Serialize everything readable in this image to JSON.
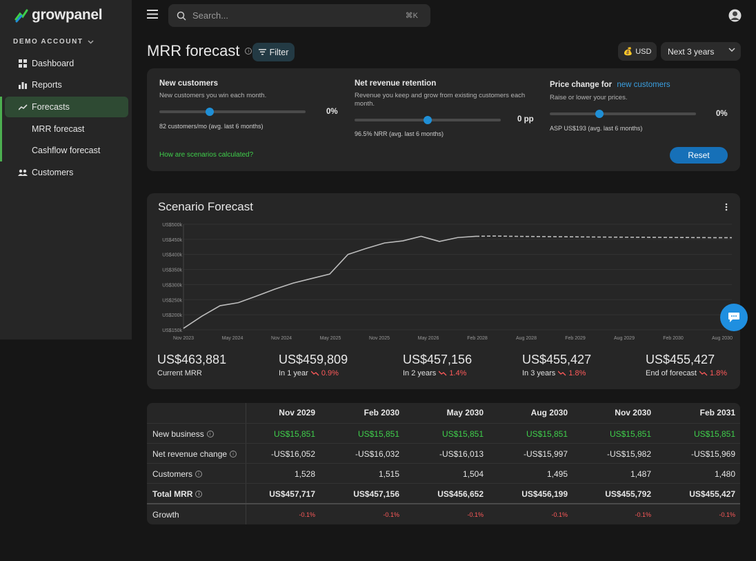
{
  "brand": {
    "name": "growpanel"
  },
  "account": {
    "label": "DEMO ACCOUNT"
  },
  "nav": {
    "dashboard": "Dashboard",
    "reports": "Reports",
    "forecasts": "Forecasts",
    "mrr_forecast": "MRR forecast",
    "cashflow_forecast": "Cashflow forecast",
    "customers": "Customers"
  },
  "search": {
    "placeholder": "Search...",
    "shortcut": "⌘K"
  },
  "page": {
    "title": "MRR forecast",
    "filter_label": "Filter",
    "currency": "USD",
    "range": "Next 3 years"
  },
  "scenario": {
    "new_customers": {
      "title": "New customers",
      "desc": "New customers you win each month.",
      "value": "0%",
      "foot": "82 customers/mo (avg. last 6 months)"
    },
    "nrr": {
      "title": "Net revenue retention",
      "desc": "Revenue you keep and grow from existing customers each month.",
      "value": "0 pp",
      "foot": "96.5% NRR (avg. last 6 months)"
    },
    "price": {
      "title": "Price change for",
      "link": "new customers",
      "desc": "Raise or lower your prices.",
      "value": "0%",
      "foot": "ASP US$193 (avg. last 6 months)"
    },
    "how_link": "How are scenarios calculated?",
    "reset": "Reset"
  },
  "chart_data": {
    "type": "line",
    "title": "Scenario Forecast",
    "ylim": [
      150000,
      500000
    ],
    "yticks": [
      "US$150k",
      "US$200k",
      "US$250k",
      "US$300k",
      "US$350k",
      "US$400k",
      "US$450k",
      "US$500k"
    ],
    "xticks": [
      "Nov 2023",
      "May 2024",
      "Nov 2024",
      "May 2025",
      "Nov 2025",
      "May 2026",
      "Feb 2028",
      "Aug 2028",
      "Feb 2029",
      "Aug 2029",
      "Feb 2030",
      "Aug 2030"
    ],
    "series": [
      {
        "values": [
          155000,
          195000,
          230000,
          240000,
          262000,
          285000,
          305000,
          320000,
          335000,
          400000,
          420000,
          438000,
          445000,
          460000,
          443000,
          456000,
          460000
        ]
      },
      {
        "values": [
          460000,
          461000,
          460000,
          459500,
          459000,
          458500,
          458000,
          457500,
          457156,
          457000,
          456600,
          456200,
          455900,
          455600,
          455427
        ]
      }
    ]
  },
  "kpis": [
    {
      "value": "US$463,881",
      "label": "Current MRR",
      "change": ""
    },
    {
      "value": "US$459,809",
      "label": "In 1 year",
      "change": "0.9%"
    },
    {
      "value": "US$457,156",
      "label": "In 2 years",
      "change": "1.4%"
    },
    {
      "value": "US$455,427",
      "label": "In 3 years",
      "change": "1.8%"
    },
    {
      "value": "US$455,427",
      "label": "End of forecast",
      "change": "1.8%"
    }
  ],
  "table": {
    "columns": [
      "Nov 2029",
      "Feb 2030",
      "May 2030",
      "Aug 2030",
      "Nov 2030",
      "Feb 2031"
    ],
    "rows": [
      {
        "label": "New business",
        "values": [
          "US$15,851",
          "US$15,851",
          "US$15,851",
          "US$15,851",
          "US$15,851",
          "US$15,851"
        ]
      },
      {
        "label": "Net revenue change",
        "values": [
          "-US$16,052",
          "-US$16,032",
          "-US$16,013",
          "-US$15,997",
          "-US$15,982",
          "-US$15,969"
        ]
      },
      {
        "label": "Customers",
        "values": [
          "1,528",
          "1,515",
          "1,504",
          "1,495",
          "1,487",
          "1,480"
        ]
      },
      {
        "label": "Total MRR",
        "values": [
          "US$457,717",
          "US$457,156",
          "US$456,652",
          "US$456,199",
          "US$455,792",
          "US$455,427"
        ]
      },
      {
        "label": "Growth",
        "values": [
          "-0.1%",
          "-0.1%",
          "-0.1%",
          "-0.1%",
          "-0.1%",
          "-0.1%"
        ]
      }
    ]
  },
  "colors": {
    "accent": "#1f8fd6",
    "positive": "#3fcf4b",
    "negative": "#ff5a5a"
  }
}
